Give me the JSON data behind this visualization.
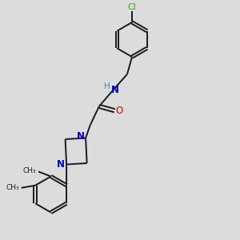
{
  "bg_color": "#dcdcdc",
  "bond_color": "#1a1a1a",
  "N_color": "#0000cc",
  "O_color": "#cc0000",
  "Cl_color": "#33aa00",
  "H_color": "#448888",
  "line_width": 1.4,
  "fig_size": [
    3.0,
    3.0
  ],
  "dpi": 100,
  "xlim": [
    0,
    10
  ],
  "ylim": [
    0,
    10
  ]
}
